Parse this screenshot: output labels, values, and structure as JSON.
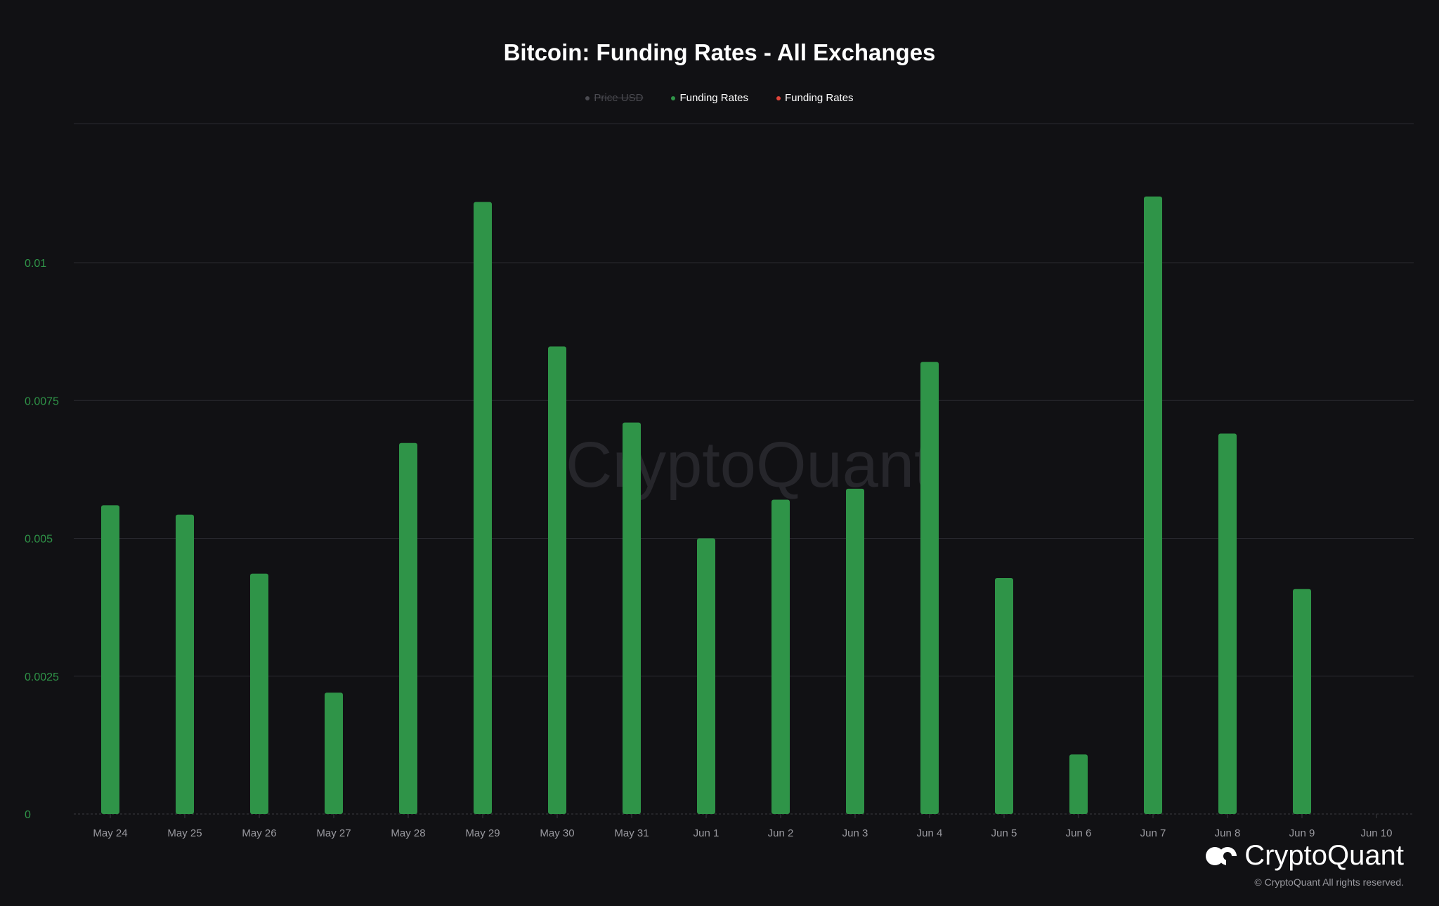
{
  "title": "Bitcoin: Funding Rates - All Exchanges",
  "legend": [
    {
      "label": "Price USD",
      "color": "#6b6b70",
      "disabled": true
    },
    {
      "label": "Funding Rates",
      "color": "#2f9448",
      "disabled": false
    },
    {
      "label": "Funding Rates",
      "color": "#e0453a",
      "disabled": false
    }
  ],
  "watermark": "CryptoQuant",
  "brand": {
    "name": "CryptoQuant",
    "copyright": "© CryptoQuant All rights reserved."
  },
  "colors": {
    "background": "#111114",
    "bar_positive": "#2f9448",
    "axis_text": "#2f9448",
    "x_axis_text": "#9a9aa0",
    "grid": "#2a2a30"
  },
  "chart_data": {
    "type": "bar",
    "title": "Bitcoin: Funding Rates - All Exchanges",
    "xlabel": "",
    "ylabel": "",
    "ylim": [
      0,
      0.0125
    ],
    "y_ticks": [
      {
        "value": 0,
        "label": "0"
      },
      {
        "value": 0.0025,
        "label": "0.0025"
      },
      {
        "value": 0.005,
        "label": "0.005"
      },
      {
        "value": 0.0075,
        "label": "0.0075"
      },
      {
        "value": 0.01,
        "label": "0.01"
      }
    ],
    "categories": [
      "May 24",
      "May 25",
      "May 26",
      "May 27",
      "May 28",
      "May 29",
      "May 30",
      "May 31",
      "Jun 1",
      "Jun 2",
      "Jun 3",
      "Jun 4",
      "Jun 5",
      "Jun 6",
      "Jun 7",
      "Jun 8",
      "Jun 9",
      "Jun 10"
    ],
    "series": [
      {
        "name": "Funding Rates",
        "values": [
          0.0056,
          0.00543,
          0.00436,
          0.0022,
          0.00673,
          0.0111,
          0.00848,
          0.0071,
          0.005,
          0.0057,
          0.0059,
          0.0082,
          0.00428,
          0.00108,
          0.0112,
          0.0069,
          0.00408,
          null
        ]
      }
    ],
    "grid": true,
    "legend_position": "top-center"
  }
}
